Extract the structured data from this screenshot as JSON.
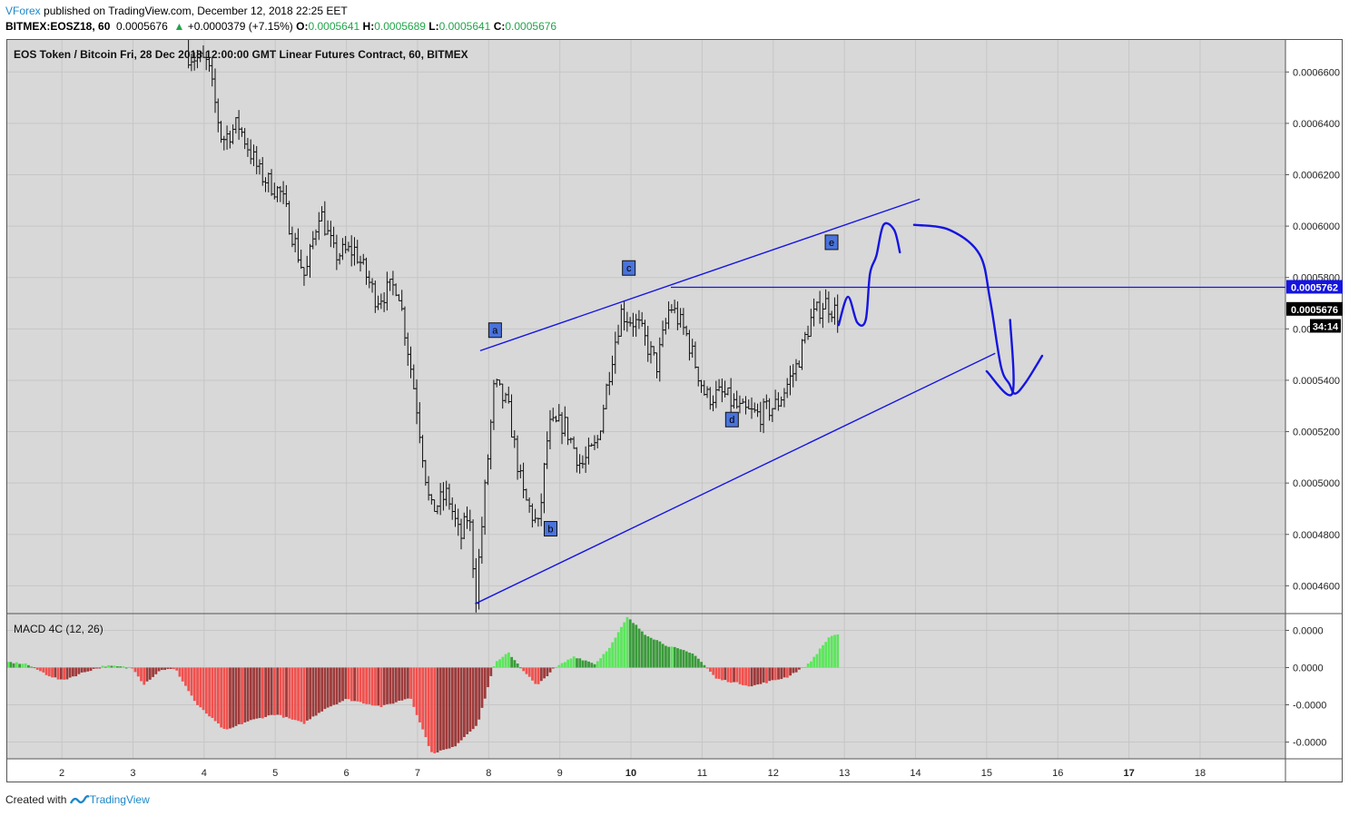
{
  "header": {
    "author": "VForex",
    "published_text": "published on TradingView.com, December 12, 2018 22:25 EET",
    "symbol": "BITMEX:EOSZ18, 60",
    "last": "0.0005676",
    "change": "+0.0000379 (+7.15%)",
    "o_label": "O:",
    "o_value": "0.0005641",
    "h_label": "H:",
    "h_value": "0.0005689",
    "l_label": "L:",
    "l_value": "0.0005641",
    "c_label": "C:",
    "c_value": "0.0005676"
  },
  "footer": {
    "created_with": "Created with",
    "brand": "TradingView"
  },
  "chart_data": [
    {
      "type": "candlestick",
      "title": "EOS Token / Bitcoin Fri, 28 Dec 2018 12:00:00 GMT Linear Futures Contract, 60, BITMEX",
      "x_ticks": [
        "2",
        "3",
        "4",
        "5",
        "6",
        "7",
        "8",
        "9",
        "10",
        "11",
        "12",
        "13",
        "14",
        "15",
        "16",
        "17",
        "18"
      ],
      "x_tick_days": [
        2,
        3,
        4,
        5,
        6,
        7,
        8,
        9,
        10,
        11,
        12,
        13,
        14,
        15,
        16,
        17,
        18
      ],
      "x_bold_ticks": [
        "10",
        "17"
      ],
      "xlim": [
        1.22,
        19.2
      ],
      "ylim": [
        0.00044918,
        0.00067282
      ],
      "y_ticks": [
        0.00046,
        0.00048,
        0.0005,
        0.00052,
        0.00054,
        0.00056,
        0.00058,
        0.0006,
        0.00062,
        0.00064,
        0.00066
      ],
      "y_tick_labels": [
        "0.0004600",
        "0.0004800",
        "0.0005000",
        "0.0005200",
        "0.0005400",
        "0.0005600",
        "0.0005800",
        "0.0006000",
        "0.0006200",
        "0.0006400",
        "0.0006600"
      ],
      "price_labels": [
        {
          "text": "0.0005762",
          "value": 0.0005762,
          "style": "blue"
        },
        {
          "text": "0.0005676",
          "value": 0.0005676,
          "style": "black"
        },
        {
          "text": "34:14",
          "value": 0.000561,
          "style": "black"
        }
      ],
      "hline": {
        "value": 0.0005762,
        "x_start": 10.56
      },
      "trend_lines": [
        {
          "x1": 7.88,
          "y1": 0.0005515,
          "x2": 14.06,
          "y2": 0.0006105
        },
        {
          "x1": 7.81,
          "y1": 0.000453,
          "x2": 15.12,
          "y2": 0.0005505
        }
      ],
      "wave_labels": [
        {
          "text": "a",
          "x": 8.09,
          "y": 0.0005595
        },
        {
          "text": "b",
          "x": 8.87,
          "y": 0.0004822
        },
        {
          "text": "c",
          "x": 9.97,
          "y": 0.0005837
        },
        {
          "text": "d",
          "x": 11.42,
          "y": 0.0005247
        },
        {
          "text": "e",
          "x": 12.82,
          "y": 0.0005937
        }
      ],
      "anchors": [
        {
          "x": 1.35,
          "y": 0.0007
        },
        {
          "x": 3.8,
          "y": 0.0006667
        },
        {
          "x": 4.05,
          "y": 0.000663
        },
        {
          "x": 4.25,
          "y": 0.0006335
        },
        {
          "x": 4.48,
          "y": 0.0006396
        },
        {
          "x": 4.78,
          "y": 0.0006205
        },
        {
          "x": 5.08,
          "y": 0.0006125
        },
        {
          "x": 5.42,
          "y": 0.0005795
        },
        {
          "x": 5.62,
          "y": 0.0006067
        },
        {
          "x": 5.83,
          "y": 0.0005888
        },
        {
          "x": 6.12,
          "y": 0.0005907
        },
        {
          "x": 6.42,
          "y": 0.0005717
        },
        {
          "x": 6.72,
          "y": 0.0005775
        },
        {
          "x": 6.97,
          "y": 0.0005335
        },
        {
          "x": 7.18,
          "y": 0.0004888
        },
        {
          "x": 7.42,
          "y": 0.0004958
        },
        {
          "x": 7.6,
          "y": 0.0004778
        },
        {
          "x": 7.72,
          "y": 0.0004888
        },
        {
          "x": 7.82,
          "y": 0.000456
        },
        {
          "x": 7.95,
          "y": 0.000498
        },
        {
          "x": 8.08,
          "y": 0.0005385
        },
        {
          "x": 8.27,
          "y": 0.0005295
        },
        {
          "x": 8.48,
          "y": 0.0004955
        },
        {
          "x": 8.7,
          "y": 0.0004825
        },
        {
          "x": 8.84,
          "y": 0.0005215
        },
        {
          "x": 9.06,
          "y": 0.0005232
        },
        {
          "x": 9.3,
          "y": 0.0005065
        },
        {
          "x": 9.52,
          "y": 0.000515
        },
        {
          "x": 9.72,
          "y": 0.0005475
        },
        {
          "x": 9.86,
          "y": 0.0005665
        },
        {
          "x": 10.1,
          "y": 0.0005615
        },
        {
          "x": 10.36,
          "y": 0.0005455
        },
        {
          "x": 10.55,
          "y": 0.0005695
        },
        {
          "x": 10.78,
          "y": 0.0005575
        },
        {
          "x": 11.05,
          "y": 0.0005335
        },
        {
          "x": 11.3,
          "y": 0.0005345
        },
        {
          "x": 11.55,
          "y": 0.0005278
        },
        {
          "x": 11.8,
          "y": 0.0005265
        },
        {
          "x": 12.05,
          "y": 0.0005305
        },
        {
          "x": 12.32,
          "y": 0.000545
        },
        {
          "x": 12.52,
          "y": 0.000563
        },
        {
          "x": 12.72,
          "y": 0.0005705
        },
        {
          "x": 12.92,
          "y": 0.0005655
        }
      ],
      "drawings": [
        {
          "points": [
            [
              12.92,
              0.0005615
            ],
            [
              13.05,
              0.0005725
            ],
            [
              13.18,
              0.0005625
            ],
            [
              13.3,
              0.0005635
            ],
            [
              13.36,
              0.0005815
            ],
            [
              13.45,
              0.0005885
            ],
            [
              13.55,
              0.0006005
            ],
            [
              13.7,
              0.0005985
            ],
            [
              13.78,
              0.0005898
            ]
          ]
        },
        {
          "points": [
            [
              13.98,
              0.0006005
            ],
            [
              14.48,
              0.0005985
            ],
            [
              14.9,
              0.000589
            ],
            [
              15.05,
              0.000571
            ],
            [
              15.2,
              0.0005455
            ],
            [
              15.32,
              0.0005385
            ],
            [
              15.4,
              0.0005348
            ],
            [
              15.55,
              0.0005392
            ],
            [
              15.78,
              0.0005495
            ]
          ]
        },
        {
          "points": [
            [
              15.0,
              0.0005435
            ],
            [
              15.36,
              0.0005348
            ],
            [
              15.33,
              0.0005635
            ]
          ]
        }
      ]
    },
    {
      "type": "histogram",
      "title": "MACD 4C (12, 26)",
      "y_tick_labels": [
        "0.0000",
        "0.0000",
        "-0.0000",
        "-0.0000"
      ],
      "y_ticks": [
        0.2,
        0,
        -0.2,
        -0.4
      ],
      "ylim": [
        -0.49,
        0.29
      ],
      "colors": {
        "up_rising": "#5ce65c",
        "up_falling": "#3a9b3a",
        "down_falling": "#f0524f",
        "down_rising": "#9e3b3b"
      },
      "anchors": [
        {
          "x": 1.22,
          "y": 0.03
        },
        {
          "x": 1.5,
          "y": 0.02
        },
        {
          "x": 1.8,
          "y": -0.04
        },
        {
          "x": 2.0,
          "y": -0.07
        },
        {
          "x": 2.35,
          "y": -0.02
        },
        {
          "x": 2.6,
          "y": 0.01
        },
        {
          "x": 3.0,
          "y": 0.0
        },
        {
          "x": 3.15,
          "y": -0.09
        },
        {
          "x": 3.4,
          "y": -0.01
        },
        {
          "x": 3.6,
          "y": -0.01
        },
        {
          "x": 3.9,
          "y": -0.2
        },
        {
          "x": 4.3,
          "y": -0.34
        },
        {
          "x": 4.6,
          "y": -0.29
        },
        {
          "x": 5.0,
          "y": -0.25
        },
        {
          "x": 5.4,
          "y": -0.3
        },
        {
          "x": 5.7,
          "y": -0.22
        },
        {
          "x": 6.0,
          "y": -0.17
        },
        {
          "x": 6.5,
          "y": -0.21
        },
        {
          "x": 6.9,
          "y": -0.16
        },
        {
          "x": 7.2,
          "y": -0.46
        },
        {
          "x": 7.5,
          "y": -0.43
        },
        {
          "x": 7.85,
          "y": -0.3
        },
        {
          "x": 8.08,
          "y": 0.02
        },
        {
          "x": 8.28,
          "y": 0.08
        },
        {
          "x": 8.5,
          "y": -0.02
        },
        {
          "x": 8.68,
          "y": -0.1
        },
        {
          "x": 8.9,
          "y": -0.01
        },
        {
          "x": 9.2,
          "y": 0.06
        },
        {
          "x": 9.5,
          "y": 0.02
        },
        {
          "x": 9.72,
          "y": 0.12
        },
        {
          "x": 9.95,
          "y": 0.27
        },
        {
          "x": 10.2,
          "y": 0.18
        },
        {
          "x": 10.5,
          "y": 0.12
        },
        {
          "x": 10.9,
          "y": 0.07
        },
        {
          "x": 11.2,
          "y": -0.06
        },
        {
          "x": 11.7,
          "y": -0.1
        },
        {
          "x": 12.2,
          "y": -0.05
        },
        {
          "x": 12.5,
          "y": 0.02
        },
        {
          "x": 12.8,
          "y": 0.17
        },
        {
          "x": 12.92,
          "y": 0.18
        }
      ]
    }
  ],
  "colors": {
    "line_blue": "#1515e0",
    "price_blue": "#1515e0",
    "plot_bg": "#d8d8d8",
    "label_bg": "#4a73dc"
  }
}
